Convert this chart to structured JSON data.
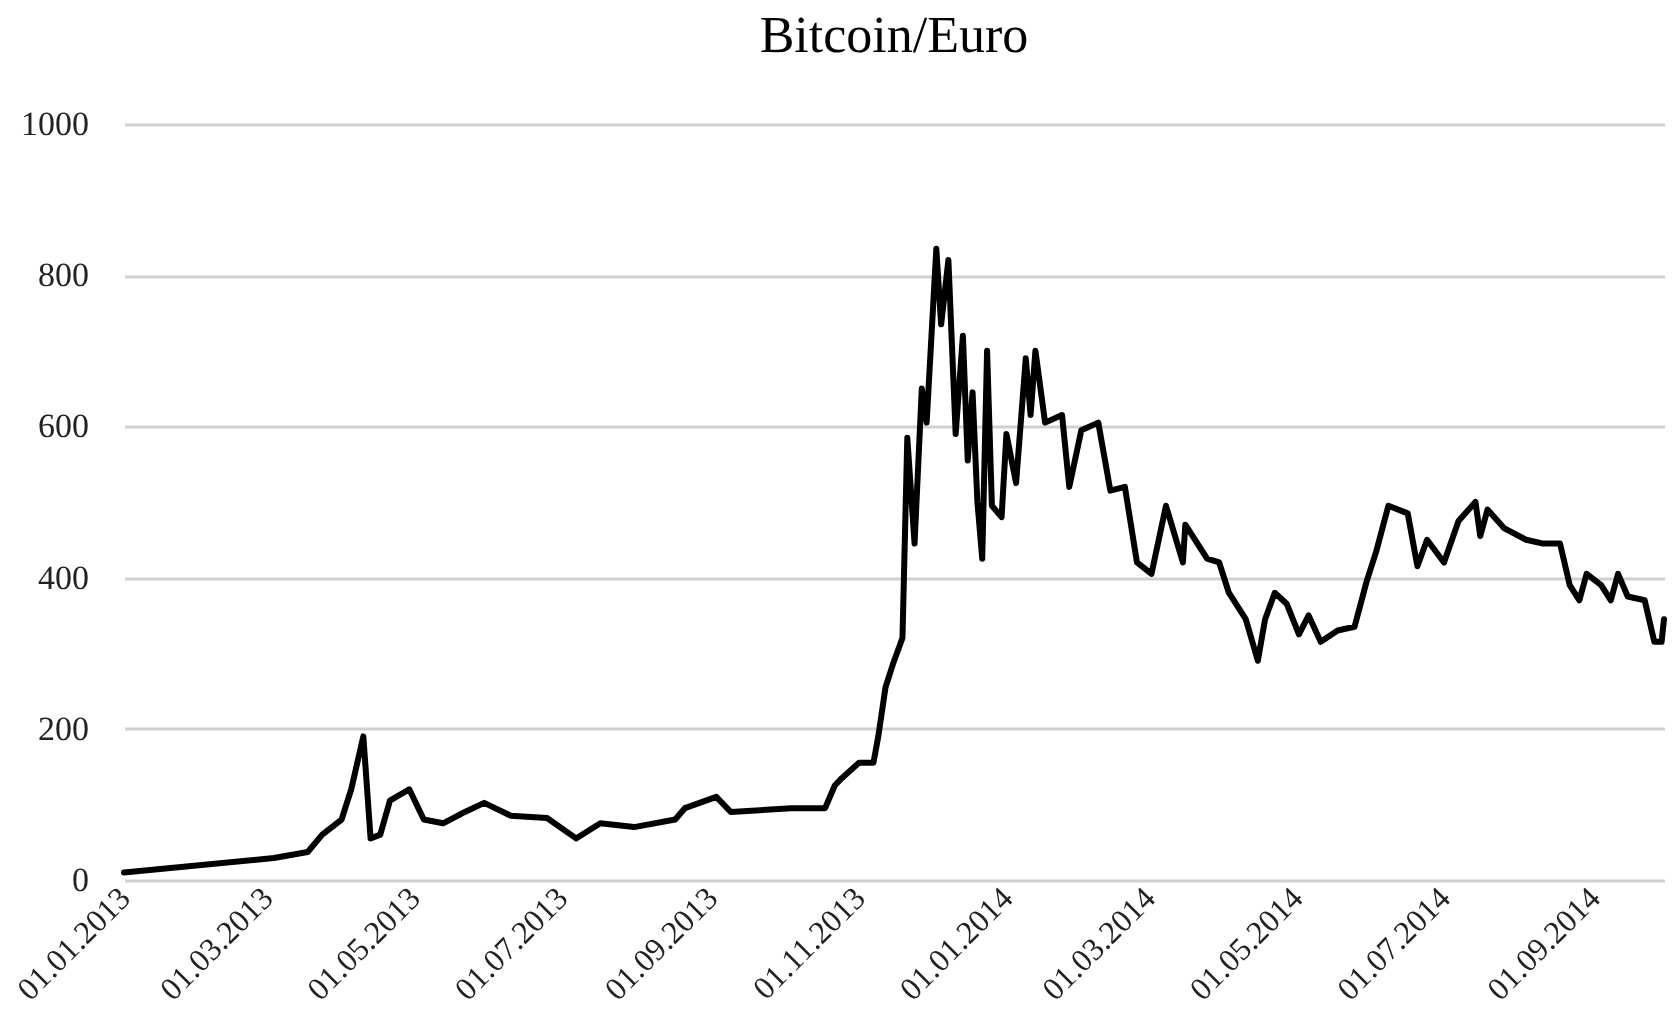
{
  "chart_data": {
    "type": "line",
    "title": "Bitcoin/Euro",
    "x": [
      "2013-01-01",
      "2013-03-04",
      "2013-03-18",
      "2013-03-24",
      "2013-04-01",
      "2013-04-05",
      "2013-04-10",
      "2013-04-13",
      "2013-04-17",
      "2013-04-21",
      "2013-04-29",
      "2013-05-05",
      "2013-05-13",
      "2013-05-22",
      "2013-05-30",
      "2013-06-10",
      "2013-06-25",
      "2013-07-07",
      "2013-07-17",
      "2013-07-31",
      "2013-08-17",
      "2013-08-21",
      "2013-09-03",
      "2013-09-09",
      "2013-10-04",
      "2013-10-18",
      "2013-10-22",
      "2013-10-25",
      "2013-11-01",
      "2013-11-07",
      "2013-11-09",
      "2013-11-12",
      "2013-11-15",
      "2013-11-19",
      "2013-11-21",
      "2013-11-24",
      "2013-11-27",
      "2013-11-29",
      "2013-12-03",
      "2013-12-05",
      "2013-12-08",
      "2013-12-11",
      "2013-12-14",
      "2013-12-16",
      "2013-12-18",
      "2013-12-20",
      "2013-12-22",
      "2013-12-24",
      "2013-12-26",
      "2013-12-30",
      "2014-01-01",
      "2014-01-05",
      "2014-01-09",
      "2014-01-11",
      "2014-01-13",
      "2014-01-17",
      "2014-01-24",
      "2014-01-27",
      "2014-02-01",
      "2014-02-08",
      "2014-02-13",
      "2014-02-19",
      "2014-02-24",
      "2014-03-02",
      "2014-03-08",
      "2014-03-15",
      "2014-03-16",
      "2014-03-25",
      "2014-03-30",
      "2014-04-03",
      "2014-04-10",
      "2014-04-15",
      "2014-04-18",
      "2014-04-22",
      "2014-04-27",
      "2014-05-02",
      "2014-05-06",
      "2014-05-11",
      "2014-05-18",
      "2014-05-25",
      "2014-05-30",
      "2014-06-03",
      "2014-06-08",
      "2014-06-16",
      "2014-06-20",
      "2014-06-24",
      "2014-07-01",
      "2014-07-07",
      "2014-07-14",
      "2014-07-16",
      "2014-07-19",
      "2014-07-26",
      "2014-08-04",
      "2014-08-11",
      "2014-08-18",
      "2014-08-22",
      "2014-08-26",
      "2014-08-29",
      "2014-09-04",
      "2014-09-08",
      "2014-09-11",
      "2014-09-15",
      "2014-09-22",
      "2014-09-26",
      "2014-09-29",
      "2014-09-30"
    ],
    "series": [
      {
        "color": "#000000",
        "values": [
          10,
          29,
          37,
          60,
          80,
          120,
          190,
          55,
          60,
          105,
          120,
          80,
          75,
          90,
          102,
          85,
          82,
          55,
          75,
          70,
          80,
          95,
          110,
          90,
          95,
          95,
          125,
          135,
          155,
          155,
          190,
          255,
          285,
          320,
          585,
          445,
          650,
          605,
          835,
          735,
          820,
          590,
          720,
          555,
          645,
          500,
          425,
          700,
          495,
          480,
          590,
          525,
          690,
          615,
          700,
          605,
          615,
          520,
          595,
          605,
          515,
          520,
          420,
          405,
          495,
          420,
          470,
          425,
          420,
          380,
          345,
          290,
          345,
          380,
          365,
          325,
          350,
          315,
          330,
          335,
          395,
          435,
          495,
          485,
          415,
          450,
          420,
          475,
          500,
          455,
          490,
          465,
          450,
          445,
          445,
          390,
          370,
          405,
          390,
          370,
          405,
          375,
          370,
          315,
          315,
          345
        ]
      }
    ],
    "xlim": [
      "2013-01-01",
      "2014-09-30"
    ],
    "xticks": [
      {
        "value": "2013-01-01",
        "label": "01.01.2013"
      },
      {
        "value": "2013-03-01",
        "label": "01.03.2013"
      },
      {
        "value": "2013-05-01",
        "label": "01.05.2013"
      },
      {
        "value": "2013-07-01",
        "label": "01.07.2013"
      },
      {
        "value": "2013-09-01",
        "label": "01.09.2013"
      },
      {
        "value": "2013-11-01",
        "label": "01.11.2013"
      },
      {
        "value": "2014-01-01",
        "label": "01.01.2014"
      },
      {
        "value": "2014-03-01",
        "label": "01.03.2014"
      },
      {
        "value": "2014-05-01",
        "label": "01.05.2014"
      },
      {
        "value": "2014-07-01",
        "label": "01.07.2014"
      },
      {
        "value": "2014-09-01",
        "label": "01.09.2014"
      }
    ],
    "ylim": [
      0,
      1000
    ],
    "yticks": [
      0,
      200,
      400,
      600,
      800,
      1000
    ],
    "grid": "y",
    "legend": false,
    "marker": "none",
    "line_style": "solid"
  }
}
